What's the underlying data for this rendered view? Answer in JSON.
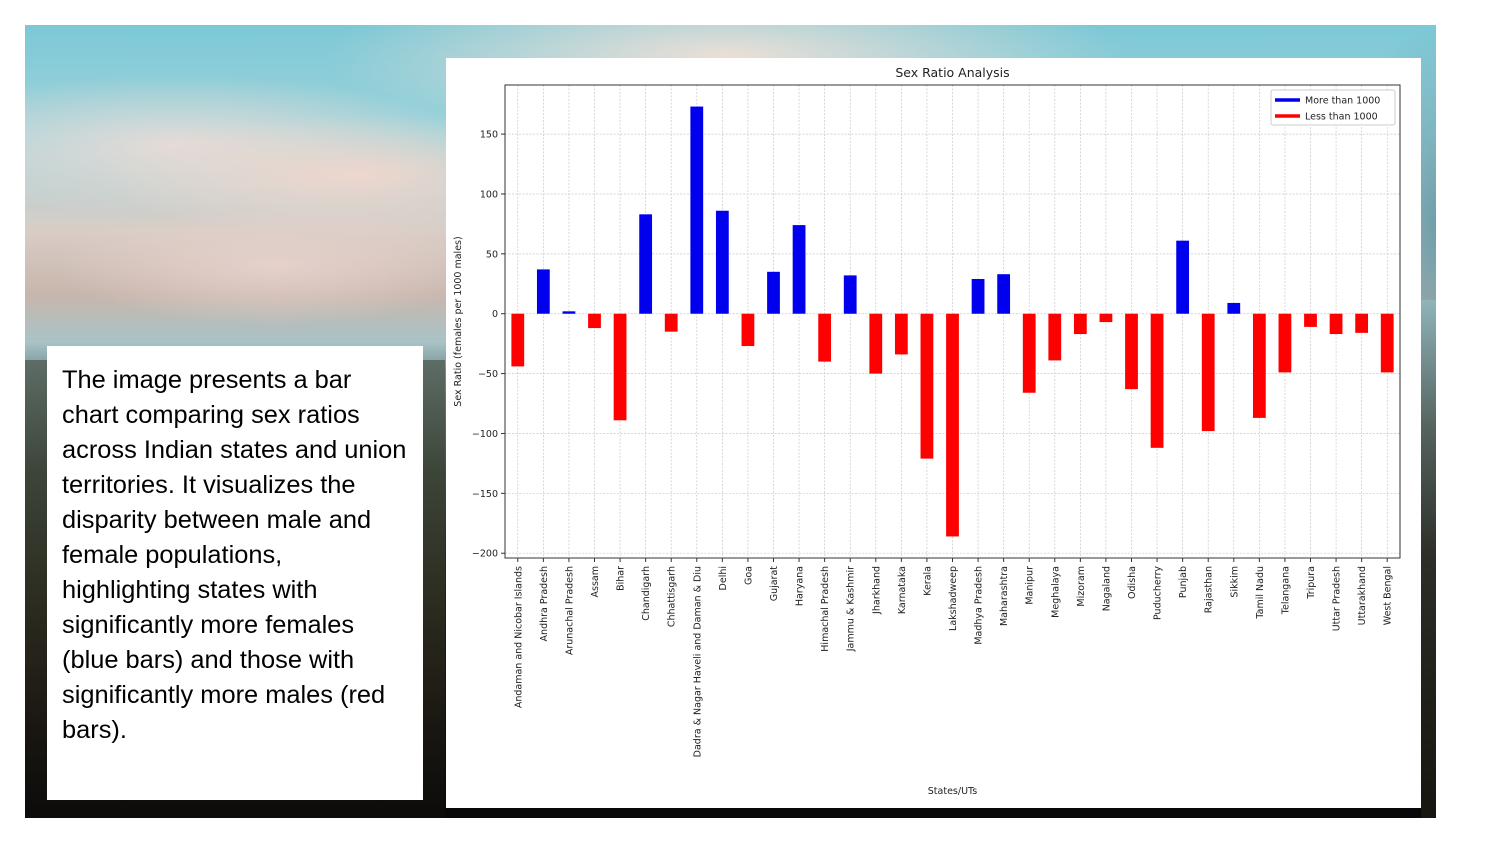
{
  "description": {
    "text": "The image presents a bar chart comparing sex ratios across Indian states and union territories. It visualizes the disparity between male and female populations, highlighting states with significantly more females (blue bars) and those with significantly more males (red bars)."
  },
  "colors": {
    "above": "#0000ee",
    "below": "#ff0000",
    "grid": "#c8c8c8",
    "axis": "#333333"
  },
  "chart_data": {
    "type": "bar",
    "title": "Sex Ratio Analysis",
    "xlabel": "States/UTs",
    "ylabel": "Sex Ratio (females per 1000 males)",
    "ylim": [
      -204,
      191
    ],
    "yticks": [
      -200,
      -150,
      -100,
      -50,
      0,
      50,
      100,
      150
    ],
    "grid": true,
    "legend_position": "top-right",
    "legend": [
      {
        "label": "More than 1000",
        "color": "#0000ee"
      },
      {
        "label": "Less than 1000",
        "color": "#ff0000"
      }
    ],
    "categories": [
      "Andaman and Nicobar Islands",
      "Andhra Pradesh",
      "Arunachal Pradesh",
      "Assam",
      "Bihar",
      "Chandigarh",
      "Chhattisgarh",
      "Dadra & Nagar Haveli and Daman & Diu",
      "Delhi",
      "Goa",
      "Gujarat",
      "Haryana",
      "Himachal Pradesh",
      "Jammu & Kashmir",
      "Jharkhand",
      "Karnataka",
      "Kerala",
      "Lakshadweep",
      "Madhya Pradesh",
      "Maharashtra",
      "Manipur",
      "Meghalaya",
      "Mizoram",
      "Nagaland",
      "Odisha",
      "Puducherry",
      "Punjab",
      "Rajasthan",
      "Sikkim",
      "Tamil Nadu",
      "Telangana",
      "Tripura",
      "Uttar Pradesh",
      "Uttarakhand",
      "West Bengal"
    ],
    "values": [
      -44,
      37,
      2,
      -12,
      -89,
      83,
      -15,
      173,
      86,
      -27,
      35,
      74,
      -40,
      32,
      -50,
      -34,
      -121,
      -186,
      29,
      33,
      -66,
      -39,
      -17,
      -7,
      -63,
      -112,
      61,
      -98,
      9,
      -87,
      -49,
      -11,
      -17,
      -16,
      -49
    ]
  }
}
